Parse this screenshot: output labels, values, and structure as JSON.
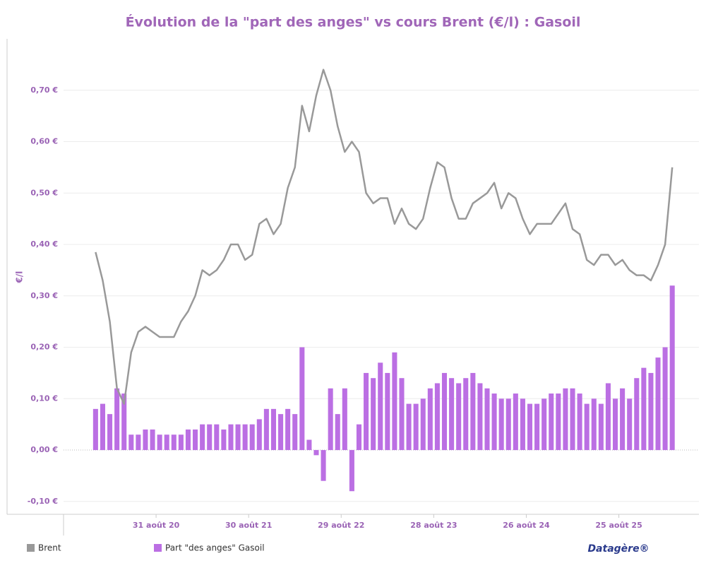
{
  "chart_data": {
    "type": "bar",
    "title": "Évolution de la \"part des anges\" vs cours Brent (€/l) : Gasoil",
    "y_label": "€/l",
    "x": [
      "2020-01-06",
      "2020-02-03",
      "2020-03-02",
      "2020-03-30",
      "2020-04-27",
      "2020-05-25",
      "2020-06-22",
      "2020-07-20",
      "2020-08-17",
      "2020-09-14",
      "2020-10-12",
      "2020-11-09",
      "2020-12-07",
      "2021-01-04",
      "2021-02-01",
      "2021-03-01",
      "2021-03-29",
      "2021-04-26",
      "2021-05-24",
      "2021-06-21",
      "2021-07-19",
      "2021-08-16",
      "2021-09-13",
      "2021-10-11",
      "2021-11-08",
      "2021-12-06",
      "2022-01-03",
      "2022-01-31",
      "2022-02-28",
      "2022-03-28",
      "2022-04-25",
      "2022-05-23",
      "2022-06-20",
      "2022-07-18",
      "2022-08-15",
      "2022-09-12",
      "2022-10-10",
      "2022-11-07",
      "2022-12-05",
      "2023-01-02",
      "2023-01-30",
      "2023-02-27",
      "2023-03-27",
      "2023-04-24",
      "2023-05-22",
      "2023-06-19",
      "2023-07-17",
      "2023-08-14",
      "2023-09-11",
      "2023-10-09",
      "2023-11-06",
      "2023-12-04",
      "2024-01-01",
      "2024-01-29",
      "2024-02-26",
      "2024-03-25",
      "2024-04-22",
      "2024-05-20",
      "2024-06-17",
      "2024-07-15",
      "2024-08-12",
      "2024-09-09",
      "2024-10-07",
      "2024-11-04",
      "2024-12-02",
      "2024-12-30",
      "2025-01-27",
      "2025-02-24",
      "2025-03-24",
      "2025-04-21",
      "2025-05-19",
      "2025-06-16",
      "2025-07-14",
      "2025-08-11",
      "2025-09-08",
      "2025-10-06",
      "2025-11-03",
      "2025-12-01",
      "2025-12-29",
      "2026-01-26",
      "2026-02-23",
      "2026-03-23"
    ],
    "series": [
      {
        "name": "Brent",
        "type": "line",
        "color": "#999999",
        "values": [
          0.385,
          0.33,
          0.25,
          0.12,
          0.09,
          0.19,
          0.23,
          0.24,
          0.23,
          0.22,
          0.22,
          0.22,
          0.25,
          0.27,
          0.3,
          0.35,
          0.34,
          0.35,
          0.37,
          0.4,
          0.4,
          0.37,
          0.38,
          0.44,
          0.45,
          0.42,
          0.44,
          0.51,
          0.55,
          0.67,
          0.62,
          0.69,
          0.74,
          0.7,
          0.63,
          0.58,
          0.6,
          0.58,
          0.5,
          0.48,
          0.49,
          0.49,
          0.44,
          0.47,
          0.44,
          0.43,
          0.45,
          0.51,
          0.56,
          0.55,
          0.49,
          0.45,
          0.45,
          0.48,
          0.49,
          0.5,
          0.52,
          0.47,
          0.5,
          0.49,
          0.45,
          0.42,
          0.44,
          0.44,
          0.44,
          0.46,
          0.48,
          0.43,
          0.42,
          0.37,
          0.36,
          0.38,
          0.38,
          0.36,
          0.37,
          0.35,
          0.34,
          0.34,
          0.33,
          0.36,
          0.4,
          0.55
        ]
      },
      {
        "name": "Part \"des anges\" Gasoil",
        "type": "bar",
        "color": "#bb6fe3",
        "values": [
          0.08,
          0.09,
          0.07,
          0.12,
          0.11,
          0.03,
          0.03,
          0.04,
          0.04,
          0.03,
          0.03,
          0.03,
          0.03,
          0.04,
          0.04,
          0.05,
          0.05,
          0.05,
          0.04,
          0.05,
          0.05,
          0.05,
          0.05,
          0.06,
          0.08,
          0.08,
          0.07,
          0.08,
          0.07,
          0.2,
          0.02,
          -0.01,
          -0.06,
          0.12,
          0.07,
          0.12,
          -0.08,
          0.05,
          0.15,
          0.14,
          0.17,
          0.15,
          0.19,
          0.14,
          0.09,
          0.09,
          0.1,
          0.12,
          0.13,
          0.15,
          0.14,
          0.13,
          0.14,
          0.15,
          0.13,
          0.12,
          0.11,
          0.1,
          0.1,
          0.11,
          0.1,
          0.09,
          0.09,
          0.1,
          0.11,
          0.11,
          0.12,
          0.12,
          0.11,
          0.09,
          0.1,
          0.09,
          0.13,
          0.1,
          0.12,
          0.1,
          0.14,
          0.16,
          0.15,
          0.18,
          0.2,
          0.32
        ]
      }
    ],
    "xlim": [
      "2019-09-02",
      "2026-07-06"
    ],
    "xticks": [
      {
        "value": "2020-08-31",
        "label": "31 août 20"
      },
      {
        "value": "2021-08-30",
        "label": "30 août 21"
      },
      {
        "value": "2022-08-29",
        "label": "29 août 22"
      },
      {
        "value": "2023-08-28",
        "label": "28 août 23"
      },
      {
        "value": "2024-08-26",
        "label": "26 août 24"
      },
      {
        "value": "2025-08-25",
        "label": "25 août 25"
      }
    ],
    "ylim": [
      -0.125,
      0.8
    ],
    "yticks": [
      {
        "value": -0.1,
        "label": "-0,10 €"
      },
      {
        "value": 0,
        "label": "0,00 €"
      },
      {
        "value": 0.1,
        "label": "0,10 €"
      },
      {
        "value": 0.2,
        "label": "0,20 €"
      },
      {
        "value": 0.3,
        "label": "0,30 €"
      },
      {
        "value": 0.4,
        "label": "0,40 €"
      },
      {
        "value": 0.5,
        "label": "0,50 €"
      },
      {
        "value": 0.6,
        "label": "0,60 €"
      },
      {
        "value": 0.7,
        "label": "0,70 €"
      }
    ],
    "grid": true,
    "legend": "bottom"
  },
  "branding": "Datagère®"
}
